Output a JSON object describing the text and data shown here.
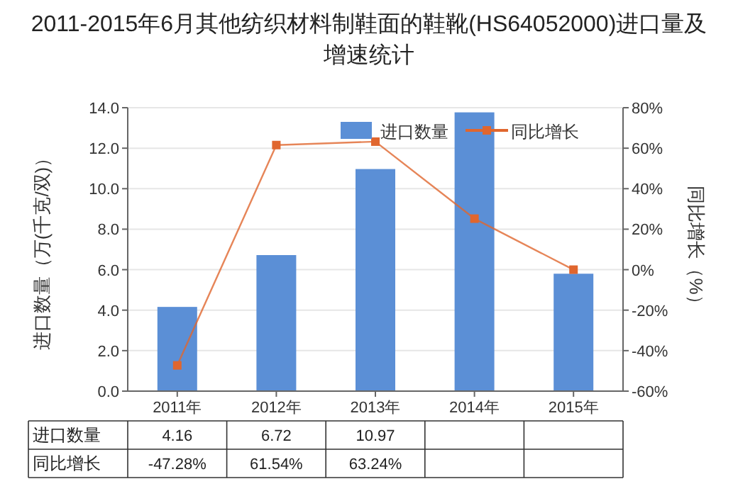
{
  "chart_data": {
    "type": "bar",
    "title": "2011-2015年6月其他纺织材料制鞋面的鞋靴(HS64052000)进口量及增速统计",
    "categories": [
      "2011年",
      "2012年",
      "2013年",
      "2014年",
      "2015年"
    ],
    "ylabel": "进口数量（万(千克/双)）",
    "y2label": "同比增长（%）",
    "series": [
      {
        "name": "进口数量",
        "color": "#5b8fd6",
        "values": [
          4.16,
          6.72,
          10.97,
          13.77,
          5.8
        ],
        "value_labels": [
          "4.16",
          "6.72",
          "10.97",
          null,
          null
        ]
      },
      {
        "name": "同比增长",
        "type": "line",
        "axis": "y2",
        "color": "#e0662e",
        "marker": "square",
        "values": [
          -47.28,
          61.54,
          63.24,
          25.2,
          0
        ],
        "value_labels": [
          "-47.28%",
          "61.54%",
          "63.24%",
          null,
          null
        ]
      }
    ],
    "ylim": [
      0,
      14
    ],
    "yticks": [
      {
        "value": 0,
        "label": "0.0"
      },
      {
        "value": 2,
        "label": "2.0"
      },
      {
        "value": 4,
        "label": "4.0"
      },
      {
        "value": 6,
        "label": "6.0"
      },
      {
        "value": 8,
        "label": "8.0"
      },
      {
        "value": 10,
        "label": "10.0"
      },
      {
        "value": 12,
        "label": "12.0"
      },
      {
        "value": 14,
        "label": "14.0"
      }
    ],
    "y2lim": [
      -60,
      80
    ],
    "y2ticks": [
      {
        "value": -60,
        "label": "-60%"
      },
      {
        "value": -40,
        "label": "-40%"
      },
      {
        "value": -20,
        "label": "-20%"
      },
      {
        "value": 0,
        "label": "0%"
      },
      {
        "value": 20,
        "label": "20%"
      },
      {
        "value": 40,
        "label": "40%"
      },
      {
        "value": 60,
        "label": "60%"
      },
      {
        "value": 80,
        "label": "80%"
      }
    ],
    "grid": "y",
    "legend": "top"
  }
}
